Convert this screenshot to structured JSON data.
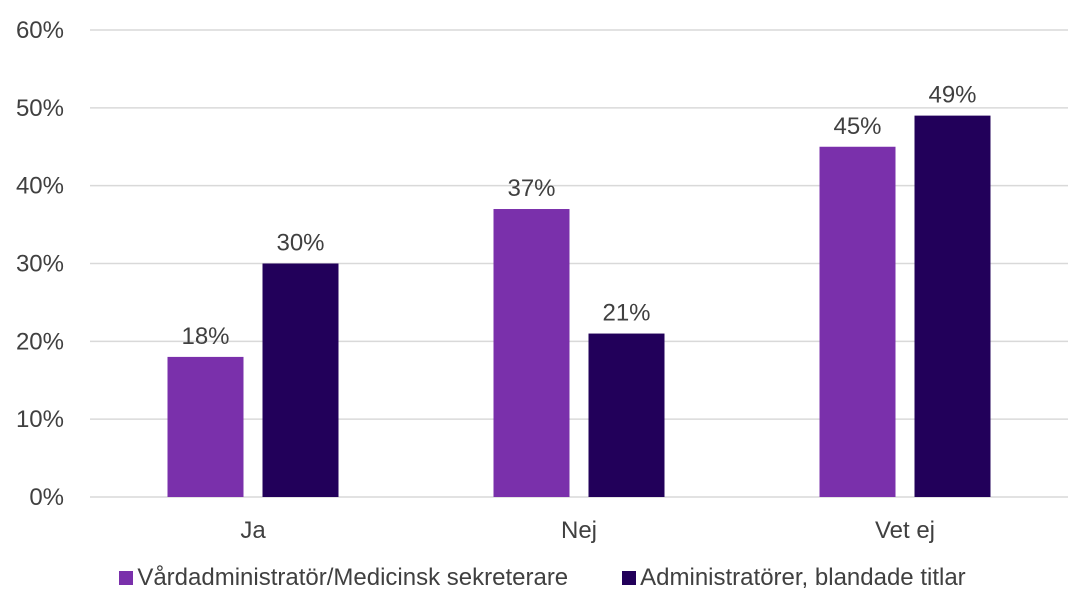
{
  "chart_data": {
    "type": "bar",
    "title": "",
    "xlabel": "",
    "ylabel": "",
    "categories": [
      "Ja",
      "Nej",
      "Vet ej"
    ],
    "series": [
      {
        "name": "Vårdadministratör/Medicinsk sekreterare",
        "color": "#7a30ab",
        "values": [
          18,
          37,
          45
        ],
        "labels": [
          "18%",
          "37%",
          "45%"
        ]
      },
      {
        "name": "Administratörer, blandade titlar",
        "color": "#22005a",
        "values": [
          30,
          21,
          49
        ],
        "labels": [
          "30%",
          "21%",
          "49%"
        ]
      }
    ],
    "ylim": [
      0,
      60
    ],
    "yticks": [
      0,
      10,
      20,
      30,
      40,
      50,
      60
    ],
    "ytick_labels": [
      "0%",
      "10%",
      "20%",
      "30%",
      "40%",
      "50%",
      "60%"
    ],
    "grid": true,
    "legend_position": "bottom"
  }
}
